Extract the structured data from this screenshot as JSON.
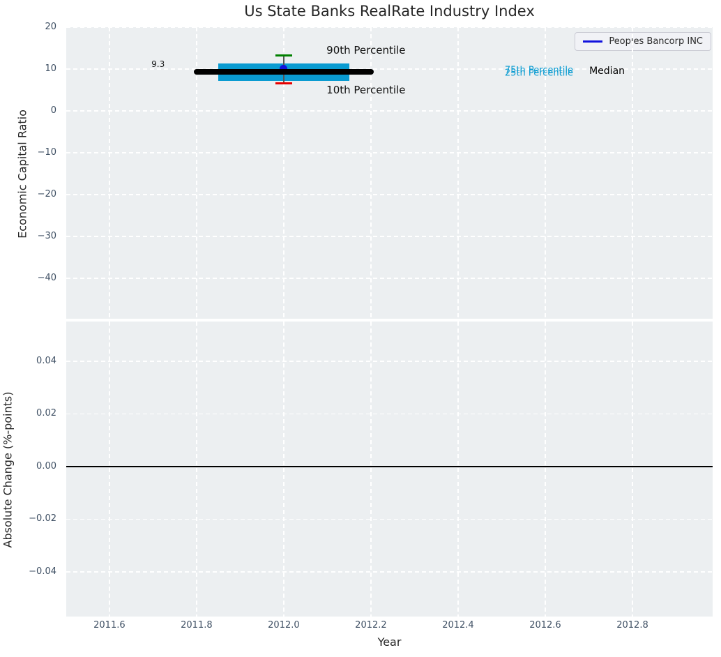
{
  "title": "Us State Banks RealRate Industry Index",
  "legend": {
    "label": "Peoples Bancorp INC"
  },
  "colors": {
    "axes_bg": "#eceff1",
    "grid": "#ffffff",
    "tick_label": "#3e4f63",
    "text": "#262626",
    "iqr_box": "#0a9bd1",
    "median_line": "#000000",
    "whisker_90": "#008000",
    "whisker_10": "#e60000",
    "errorbar_line": "#555555",
    "company_point": "#1212dd",
    "zero_line": "#000000"
  },
  "chart_data": [
    {
      "type": "box-errorbar",
      "title": "Us State Banks RealRate Industry Index",
      "ylabel": "Economic Capital Ratio",
      "xlim": [
        2011.501,
        2012.984
      ],
      "ylim": [
        -49.67,
        20
      ],
      "grid": "white dashed, on",
      "legend_position": "upper right",
      "yticks": {
        "values": [
          20,
          10,
          0,
          -10,
          -20,
          -30,
          -40
        ],
        "labels": [
          "20",
          "10",
          "0",
          "−10",
          "−20",
          "−30",
          "−40"
        ]
      },
      "xticks": {
        "values": [
          2011.6,
          2011.8,
          2012.0,
          2012.2,
          2012.4,
          2012.6,
          2012.8
        ],
        "labels": [
          "2011.6",
          "2011.8",
          "2012.0",
          "2012.2",
          "2012.4",
          "2012.6",
          "2012.8"
        ]
      },
      "industry": {
        "year_center": 2012.0,
        "median": {
          "value": 9.3,
          "x_start": 2011.8,
          "x_end": 2012.2,
          "value_label": "9.3"
        },
        "iqr_box": {
          "p25": 7.2,
          "p75": 11.4,
          "x_start": 2011.85,
          "x_end": 2012.15
        },
        "whiskers": {
          "p10": 6.5,
          "p90": 13.2
        }
      },
      "company_point": {
        "name": "Peoples Bancorp INC",
        "x": 2012.0,
        "y": 10.1
      },
      "annotations": [
        {
          "text": "9.3",
          "x": 2011.727,
          "y": 11.2,
          "align": "right",
          "size": 12,
          "color": "#1a1a1a"
        },
        {
          "text": "90th Percentile",
          "x": 2012.098,
          "y": 14.5,
          "align": "left",
          "size": 15,
          "color": "#111111"
        },
        {
          "text": "10th Percentile",
          "x": 2012.098,
          "y": 5.0,
          "align": "left",
          "size": 15,
          "color": "#111111"
        },
        {
          "text": "75th Percentile",
          "x": 2012.507,
          "y": 9.7,
          "align": "left",
          "size": 13,
          "color": "#0a9bd1"
        },
        {
          "text": "25th Percentile",
          "x": 2012.507,
          "y": 9.0,
          "align": "left",
          "size": 13,
          "color": "#0a9bd1"
        },
        {
          "text": "Median",
          "x": 2012.701,
          "y": 9.5,
          "align": "left",
          "size": 14,
          "color": "#000000"
        }
      ]
    },
    {
      "type": "line",
      "ylabel": "Absolute Change (%-points)",
      "xlabel": "Year",
      "xlim": [
        2011.501,
        2012.984
      ],
      "ylim": [
        -0.057,
        0.0551
      ],
      "grid": "white dashed, on",
      "yticks": {
        "values": [
          0.04,
          0.02,
          0,
          -0.02,
          -0.04
        ],
        "labels": [
          "0.04",
          "0.02",
          "0.00",
          "−0.02",
          "−0.04"
        ]
      },
      "xticks": {
        "values": [
          2011.6,
          2011.8,
          2012.0,
          2012.2,
          2012.4,
          2012.6,
          2012.8
        ],
        "labels": [
          "2011.6",
          "2011.8",
          "2012.0",
          "2012.2",
          "2012.4",
          "2012.6",
          "2012.8"
        ]
      },
      "zero_line": 0.0,
      "series": []
    }
  ]
}
